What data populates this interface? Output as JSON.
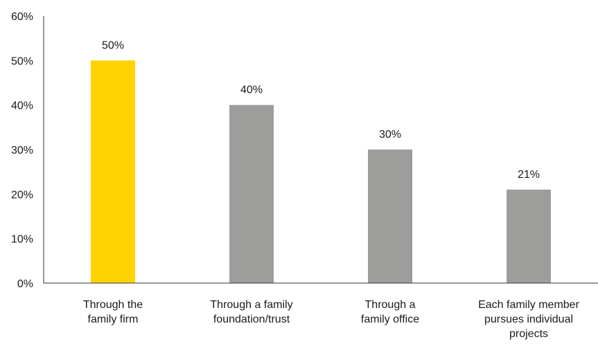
{
  "chart_data": {
    "type": "bar",
    "categories": [
      [
        "Through the",
        "family firm"
      ],
      [
        "Through a family",
        "foundation/trust"
      ],
      [
        "Through a",
        "family office"
      ],
      [
        "Each family member",
        "pursues individual",
        "projects"
      ]
    ],
    "values": [
      50,
      40,
      30,
      21
    ],
    "value_labels": [
      "50%",
      "40%",
      "30%",
      "21%"
    ],
    "y_ticks": [
      "0%",
      "10%",
      "20%",
      "30%",
      "40%",
      "50%",
      "60%"
    ],
    "ylim": [
      0,
      60
    ],
    "grid": false,
    "legend": "none",
    "colors": {
      "highlight": "#FFD200",
      "default": "#9D9D9B"
    },
    "highlight_index": 0
  }
}
